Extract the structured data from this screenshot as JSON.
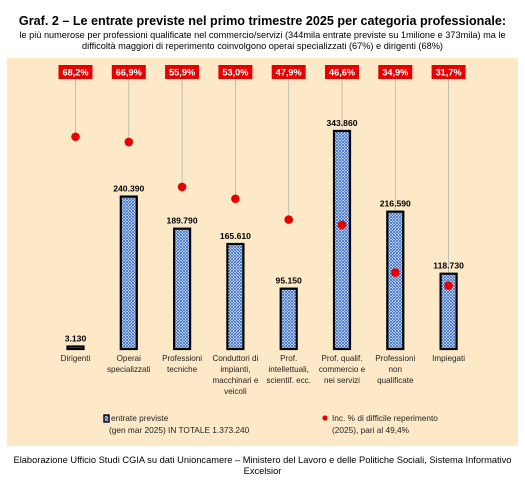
{
  "title": "Graf. 2 – Le entrate previste nel primo trimestre 2025 per categoria professionale:",
  "subtitle": "le più numerose per professioni qualificate nel commercio/servizi (344mila entrate previste su 1milione e 373mila) ma le difficoltà maggiori di reperimento coinvolgono operai specializzati (67%) e dirigenti (68%)",
  "source": "Elaborazione Ufficio Studi CGIA su dati Unioncamere – Ministero del Lavoro e delle Politiche Sociali, Sistema Informativo Excelsior",
  "colors": {
    "panel": "#fde9c7",
    "bar_stroke": "#000000",
    "pattern": "#3a6fc4",
    "dot": "#e60000",
    "label_box": "#e60000"
  },
  "chart_data": {
    "type": "bar",
    "categories": [
      [
        "Dirigenti"
      ],
      [
        "Operai",
        "specializzati"
      ],
      [
        "Professioni",
        "tecniche"
      ],
      [
        "Conduttori di",
        "impianti,",
        "macchinari e",
        "veicoli"
      ],
      [
        "Prof.",
        "intellettuali,",
        "scientif. ecc."
      ],
      [
        "Prof. qualif.",
        "commercio e",
        "nei servizi"
      ],
      [
        "Professioni",
        "non",
        "qualificate"
      ],
      [
        "Impiegati"
      ]
    ],
    "series": [
      {
        "name": "entrate previste (gen mar 2025) IN TOTALE 1.373.240",
        "legend_lines": [
          "entrate previste",
          "(gen mar 2025) IN TOTALE 1.373.240"
        ],
        "values": [
          3130,
          240390,
          189790,
          165610,
          95150,
          343860,
          216590,
          118730
        ],
        "labels": [
          "3.130",
          "240.390",
          "189.790",
          "165.610",
          "95.150",
          "343.860",
          "216.590",
          "118.730"
        ],
        "style": "crosshatch-bar"
      },
      {
        "name": "Inc. % di difficile reperimento (2025), pari al 49,4%",
        "legend_lines": [
          "Inc. % di difficile reperimento",
          "(2025), pari al 49,4%"
        ],
        "values": [
          68.2,
          66.9,
          55.9,
          53.0,
          47.9,
          46.6,
          34.9,
          31.7
        ],
        "labels": [
          "68,2%",
          "66,9%",
          "55,9%",
          "53,0%",
          "47,9%",
          "46,6%",
          "34,9%",
          "31,7%"
        ],
        "style": "red-dot"
      }
    ],
    "ylim_bars": [
      0,
      360000
    ],
    "ylim_dots": [
      0,
      100
    ],
    "grid": false,
    "legend_position": "bottom"
  }
}
